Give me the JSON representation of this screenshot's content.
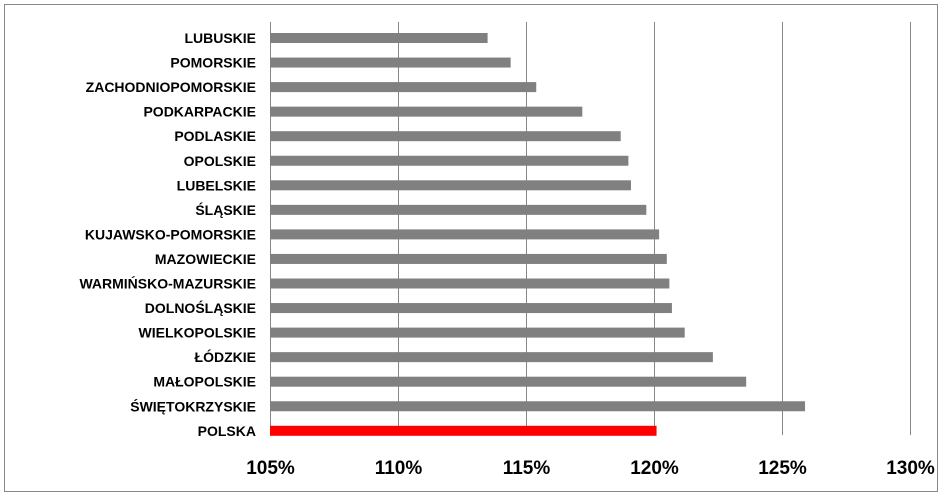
{
  "chart_data": {
    "type": "bar",
    "orientation": "horizontal",
    "categories": [
      "LUBUSKIE",
      "POMORSKIE",
      "ZACHODNIOPOMORSKIE",
      "PODKARPACKIE",
      "PODLASKIE",
      "OPOLSKIE",
      "LUBELSKIE",
      "ŚLĄSKIE",
      "KUJAWSKO-POMORSKIE",
      "MAZOWIECKIE",
      "WARMIŃSKO-MAZURSKIE",
      "DOLNOŚLĄSKIE",
      "WIELKOPOLSKIE",
      "ŁÓDZKIE",
      "MAŁOPOLSKIE",
      "ŚWIĘTOKRZYSKIE",
      "POLSKA"
    ],
    "values": [
      113.5,
      114.4,
      115.4,
      117.2,
      118.7,
      119.0,
      119.1,
      119.7,
      120.2,
      120.5,
      120.6,
      120.7,
      121.2,
      122.3,
      123.6,
      125.9,
      120.1
    ],
    "value_unit": "%",
    "highlight_category": "POLSKA",
    "xlim": [
      105,
      130
    ],
    "x_ticks": [
      105,
      110,
      115,
      120,
      125,
      130
    ],
    "x_tick_labels": [
      "105%",
      "110%",
      "115%",
      "120%",
      "125%",
      "130%"
    ],
    "title": "",
    "xlabel": "",
    "ylabel": "",
    "grid": "vertical",
    "legend": "none",
    "colors": {
      "bar": "#808080",
      "highlight": "#ff0000",
      "grid": "#868686"
    }
  }
}
